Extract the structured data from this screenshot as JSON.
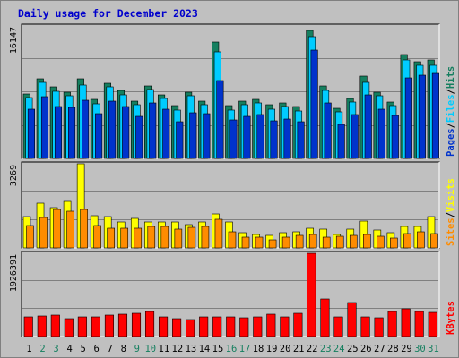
{
  "title": "Daily usage for December 2023",
  "colors": {
    "background": "#c0c0c0",
    "panel": "#c0c0c0",
    "title": "#0000cc",
    "hits": "#157f5f",
    "files": "#00ccff",
    "pages": "#0033cc",
    "visits": "#ffff00",
    "sites": "#ff8c00",
    "kbytes": "#ff0000",
    "weekend_day": "#157f5f"
  },
  "chart_data": [
    {
      "type": "bar",
      "panel": "traffic",
      "ymax_label": "16147",
      "ymax": 16147,
      "grid": true,
      "legend": [
        "Pages",
        "Files",
        "Hits"
      ],
      "legend_separator": "/",
      "categories": [
        "1",
        "2",
        "3",
        "4",
        "5",
        "6",
        "7",
        "8",
        "9",
        "10",
        "11",
        "12",
        "13",
        "14",
        "15",
        "16",
        "17",
        "18",
        "19",
        "20",
        "21",
        "22",
        "23",
        "24",
        "25",
        "26",
        "27",
        "28",
        "29",
        "30",
        "31"
      ],
      "weekend_days": [
        "2",
        "3",
        "9",
        "10",
        "16",
        "17",
        "23",
        "24",
        "30",
        "31"
      ],
      "series": [
        {
          "name": "Hits",
          "values": [
            7900,
            9700,
            8700,
            8100,
            9700,
            7200,
            9200,
            8300,
            7000,
            8800,
            7800,
            6400,
            8100,
            7000,
            14200,
            6400,
            7000,
            7200,
            6500,
            6800,
            6300,
            15600,
            8800,
            6100,
            7300,
            10000,
            8100,
            6900,
            12700,
            11800,
            12000
          ]
        },
        {
          "name": "Files",
          "values": [
            7400,
            9300,
            8200,
            7600,
            9000,
            6700,
            8700,
            7800,
            6600,
            8400,
            7300,
            5900,
            7600,
            6600,
            13000,
            5900,
            6500,
            6800,
            6000,
            6300,
            5800,
            14800,
            8300,
            5700,
            6900,
            9300,
            7600,
            6400,
            12000,
            11400,
            11400
          ]
        },
        {
          "name": "Pages",
          "values": [
            6000,
            7500,
            6300,
            6200,
            7100,
            5500,
            7000,
            6300,
            5100,
            6800,
            6000,
            4500,
            5600,
            5500,
            9500,
            4700,
            5100,
            5400,
            4600,
            4800,
            4500,
            13200,
            6800,
            4100,
            5400,
            7800,
            6000,
            5200,
            9800,
            10200,
            10400
          ]
        }
      ]
    },
    {
      "type": "bar",
      "panel": "visitors",
      "ymax_label": "3269",
      "ymax": 3269,
      "grid": true,
      "legend": [
        "Sites",
        "Visits"
      ],
      "legend_separator": "/",
      "categories": [
        "1",
        "2",
        "3",
        "4",
        "5",
        "6",
        "7",
        "8",
        "9",
        "10",
        "11",
        "12",
        "13",
        "14",
        "15",
        "16",
        "17",
        "18",
        "19",
        "20",
        "21",
        "22",
        "23",
        "24",
        "25",
        "26",
        "27",
        "28",
        "29",
        "30",
        "31"
      ],
      "series": [
        {
          "name": "Visits",
          "values": [
            1220,
            1730,
            1550,
            1810,
            3269,
            1250,
            1200,
            1000,
            1150,
            1000,
            1000,
            1000,
            900,
            1000,
            1310,
            1000,
            600,
            510,
            470,
            580,
            620,
            780,
            740,
            530,
            720,
            1050,
            690,
            580,
            820,
            820,
            1220
          ]
        },
        {
          "name": "Sites",
          "values": [
            880,
            1170,
            1500,
            1420,
            1510,
            880,
            780,
            760,
            770,
            840,
            830,
            740,
            810,
            820,
            1110,
            630,
            410,
            420,
            330,
            410,
            470,
            510,
            430,
            460,
            470,
            520,
            450,
            370,
            570,
            610,
            550
          ]
        }
      ]
    },
    {
      "type": "bar",
      "panel": "volume",
      "ymax_label": "1926391",
      "ymax": 1926391,
      "grid": true,
      "legend": [
        "KBytes"
      ],
      "categories": [
        "1",
        "2",
        "3",
        "4",
        "5",
        "6",
        "7",
        "8",
        "9",
        "10",
        "11",
        "12",
        "13",
        "14",
        "15",
        "16",
        "17",
        "18",
        "19",
        "20",
        "21",
        "22",
        "23",
        "24",
        "25",
        "26",
        "27",
        "28",
        "29",
        "30",
        "31"
      ],
      "series": [
        {
          "name": "KBytes",
          "values": [
            450000,
            470000,
            490000,
            410000,
            450000,
            450000,
            500000,
            520000,
            530000,
            570000,
            460000,
            410000,
            400000,
            450000,
            450000,
            450000,
            440000,
            450000,
            510000,
            450000,
            530000,
            1926391,
            880000,
            450000,
            780000,
            450000,
            440000,
            590000,
            650000,
            590000,
            560000
          ]
        }
      ]
    }
  ]
}
